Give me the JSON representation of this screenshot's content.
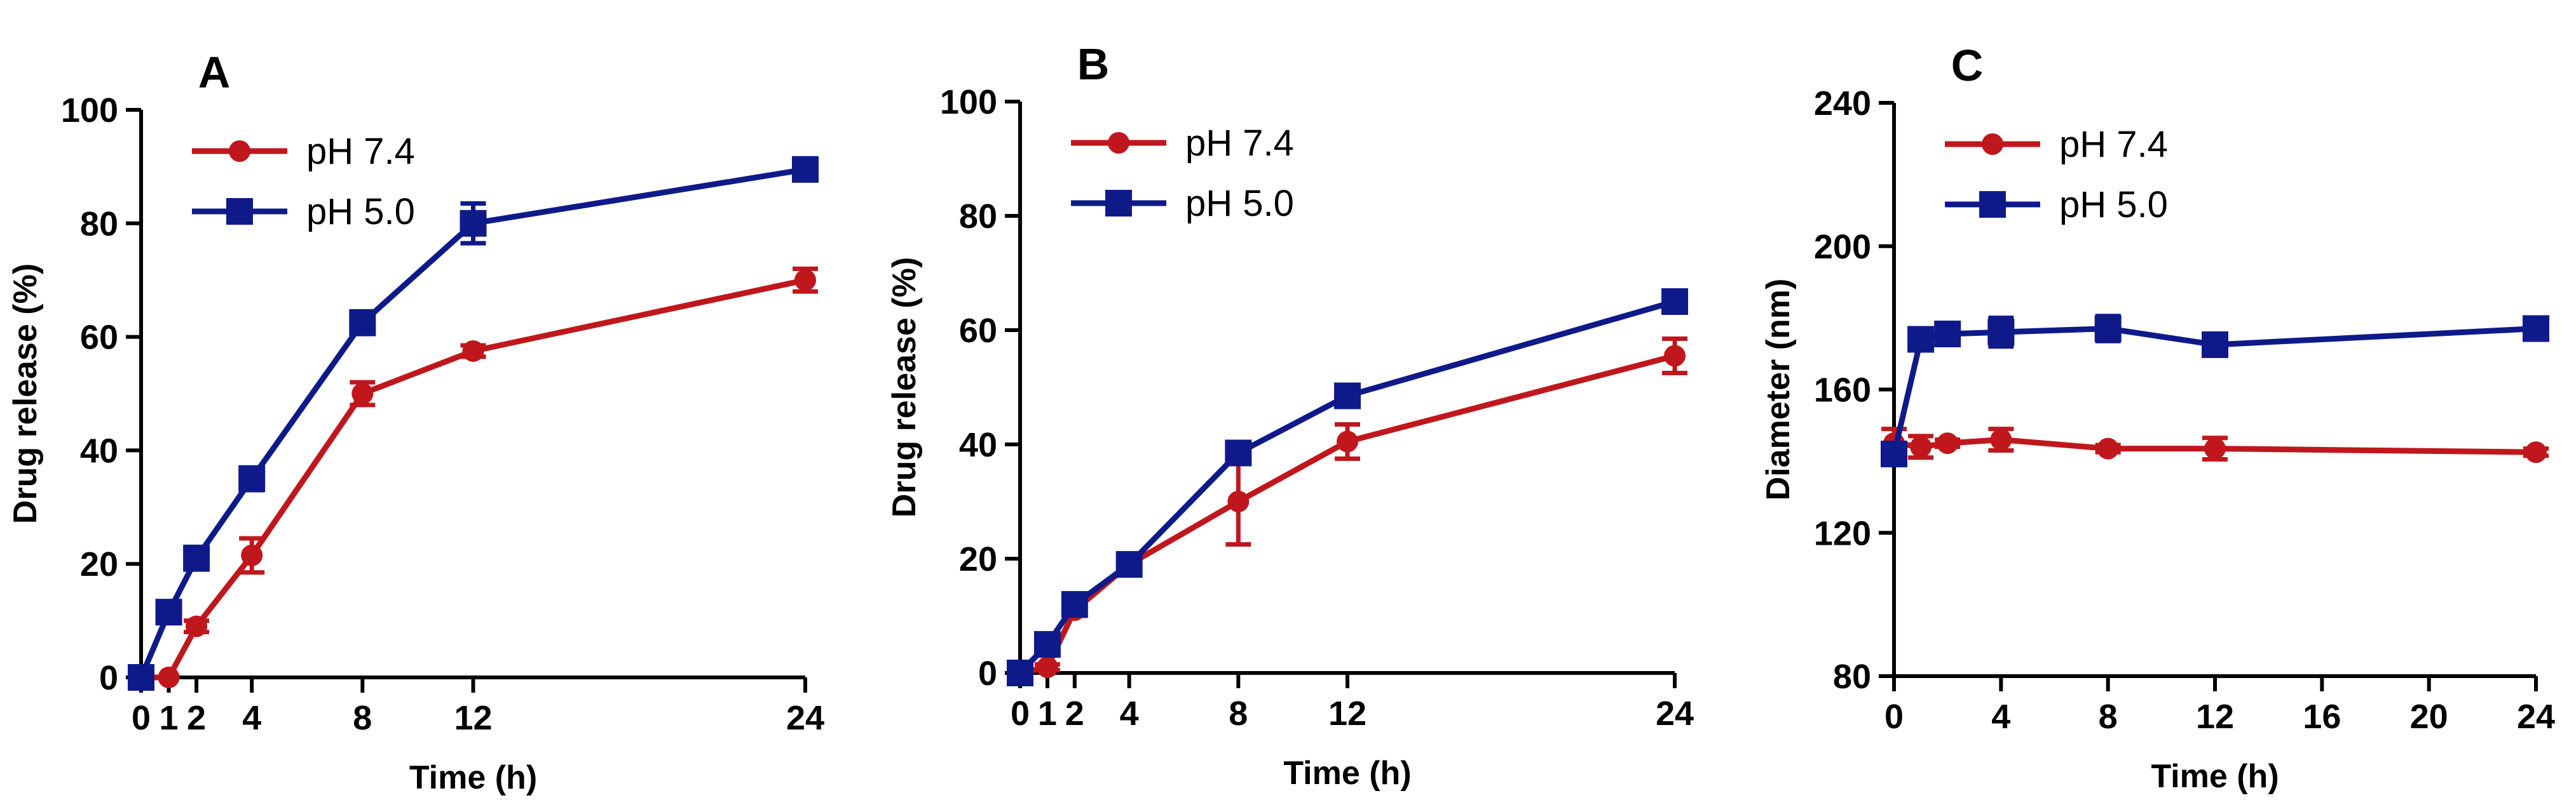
{
  "chart_data": [
    {
      "type": "line",
      "panel_label": "A",
      "title": "",
      "xlabel": "Time (h)",
      "ylabel": "Drug release  (%)",
      "xlim": [
        0,
        24
      ],
      "ylim": [
        0,
        100
      ],
      "xticks": [
        0,
        1,
        2,
        4,
        8,
        12,
        24
      ],
      "yticks": [
        0,
        20,
        40,
        60,
        80,
        100
      ],
      "grid": false,
      "legend": "top-left",
      "series": [
        {
          "name": "pH 7.4",
          "color": "#c0171d",
          "marker": "circle",
          "x": [
            0,
            1,
            2,
            4,
            8,
            12,
            24
          ],
          "y": [
            0,
            0,
            9,
            21.5,
            50,
            57.5,
            70
          ],
          "err": [
            0,
            0,
            1,
            3,
            2,
            1,
            2
          ]
        },
        {
          "name": "pH 5.0",
          "color": "#0f1a8a",
          "marker": "square",
          "x": [
            0,
            1,
            2,
            4,
            8,
            12,
            24
          ],
          "y": [
            0,
            11.5,
            21,
            35,
            62.5,
            80,
            89.5
          ],
          "err": [
            0,
            1,
            2,
            2,
            2,
            3.5,
            1
          ]
        }
      ]
    },
    {
      "type": "line",
      "panel_label": "B",
      "title": "",
      "xlabel": "Time (h)",
      "ylabel": "Drug release  (%)",
      "xlim": [
        0,
        24
      ],
      "ylim": [
        0,
        100
      ],
      "xticks": [
        0,
        1,
        2,
        4,
        8,
        12,
        24
      ],
      "yticks": [
        0,
        20,
        40,
        60,
        80,
        100
      ],
      "grid": false,
      "legend": "top-left",
      "series": [
        {
          "name": "pH 7.4",
          "color": "#c0171d",
          "marker": "circle",
          "x": [
            0,
            1,
            2,
            4,
            8,
            12,
            24
          ],
          "y": [
            0,
            1,
            11,
            19,
            30,
            40.5,
            55.5
          ],
          "err": [
            0,
            0.5,
            1,
            1,
            7.5,
            3,
            3
          ]
        },
        {
          "name": "pH 5.0",
          "color": "#0f1a8a",
          "marker": "square",
          "x": [
            0,
            1,
            2,
            4,
            8,
            12,
            24
          ],
          "y": [
            0,
            5,
            12,
            19,
            38.5,
            48.5,
            65
          ],
          "err": [
            0,
            1,
            1,
            1,
            1,
            1,
            1
          ]
        }
      ]
    },
    {
      "type": "line",
      "panel_label": "C",
      "title": "",
      "xlabel": "Time (h)",
      "ylabel": "Diameter (nm)",
      "xlim": [
        0,
        24
      ],
      "ylim": [
        80,
        240
      ],
      "xticks": [
        0,
        4,
        8,
        12,
        16,
        20,
        24
      ],
      "yticks": [
        80,
        120,
        160,
        200,
        240
      ],
      "grid": false,
      "legend": "top-left",
      "series": [
        {
          "name": "pH 7.4",
          "color": "#c0171d",
          "marker": "circle",
          "x": [
            0,
            1,
            2,
            4,
            8,
            12,
            24
          ],
          "y": [
            145,
            144,
            145,
            146,
            143.5,
            143.5,
            142.5
          ],
          "err": [
            4,
            3,
            1,
            3,
            1,
            3,
            1
          ]
        },
        {
          "name": "pH 5.0",
          "color": "#0f1a8a",
          "marker": "square",
          "x": [
            0,
            1,
            2,
            4,
            8,
            12,
            24
          ],
          "y": [
            142,
            174,
            175.5,
            176,
            177,
            172.5,
            177
          ],
          "err": [
            2,
            1,
            1,
            4,
            3.5,
            1,
            3
          ]
        }
      ]
    }
  ]
}
